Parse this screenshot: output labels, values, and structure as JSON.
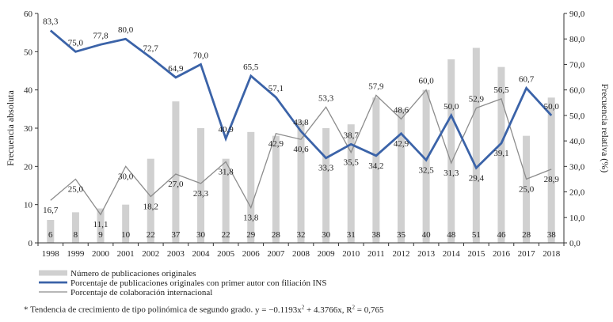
{
  "chart_data": {
    "type": "bar+line",
    "x": [
      "1998",
      "1999",
      "2000",
      "2001",
      "2002",
      "2003",
      "2004",
      "2005",
      "2006",
      "2007",
      "2008",
      "2009",
      "2010",
      "2011",
      "2012",
      "2013",
      "2014",
      "2015",
      "2016",
      "2017",
      "2018"
    ],
    "ylabel_left": "Frecuencia absoluta",
    "ylabel_right": "Frecuencia relativa (%)",
    "ylim_left": [
      0,
      60
    ],
    "ylim_right": [
      0,
      90
    ],
    "yticks_left": [
      "0",
      "10",
      "20",
      "30",
      "40",
      "50",
      "60"
    ],
    "yticks_right": [
      "0,0",
      "10,0",
      "20,0",
      "30,0",
      "40,0",
      "50,0",
      "60,0",
      "70,0",
      "80,0",
      "90,0"
    ],
    "grid": false,
    "legend_placement": "bottom-left",
    "series": [
      {
        "name": "Número de publicaciones originales",
        "kind": "bar",
        "axis": "left",
        "color": "#d0d0d0",
        "values": [
          6,
          8,
          9,
          10,
          22,
          37,
          30,
          22,
          29,
          28,
          32,
          30,
          31,
          38,
          35,
          40,
          48,
          51,
          46,
          28,
          38
        ],
        "labels": [
          "6",
          "8",
          "9",
          "10",
          "22",
          "37",
          "30",
          "22",
          "29",
          "28",
          "32",
          "30",
          "31",
          "38",
          "35",
          "40",
          "48",
          "51",
          "46",
          "28",
          "38"
        ]
      },
      {
        "name": "Porcentaje de publicaciones originales con primer autor con filiación INS",
        "kind": "line",
        "axis": "right",
        "color": "#3b63a8",
        "values": [
          83.3,
          75.0,
          77.8,
          80.0,
          72.7,
          64.9,
          70.0,
          40.9,
          65.5,
          57.1,
          43.8,
          33.3,
          38.7,
          34.2,
          42.9,
          32.5,
          50.0,
          29.4,
          39.1,
          60.7,
          50.0
        ],
        "labels": [
          "83,3",
          "75,0",
          "77,8",
          "80,0",
          "72,7",
          "64,9",
          "70,0",
          "40,9",
          "65,5",
          "57,1",
          "43,8",
          "33,3",
          "38,7",
          "34,2",
          "42,9",
          "32,5",
          "50,0",
          "29,4",
          "39,1",
          "60,7",
          "50,0"
        ]
      },
      {
        "name": "Porcentaje de colaboración internacional",
        "kind": "line",
        "axis": "right",
        "color": "#8c8c8c",
        "values": [
          16.7,
          25.0,
          11.1,
          30.0,
          18.2,
          27.0,
          23.3,
          31.8,
          13.8,
          42.9,
          40.6,
          53.3,
          35.5,
          57.9,
          48.6,
          60.0,
          31.3,
          52.9,
          56.5,
          25.0,
          28.9
        ],
        "labels": [
          "16,7",
          "25,0",
          "11,1",
          "30,0",
          "18,2",
          "27,0",
          "23,3",
          "31,8",
          "13,8",
          "42,9",
          "40,6",
          "53,3",
          "35,5",
          "57,9",
          "48,6",
          "60,0",
          "31,3",
          "52,9",
          "56,5",
          "25,0",
          "28,9"
        ]
      }
    ],
    "footnote": "Tendencia de crecimiento de tipo polinómica de segundo grado."
  },
  "footnote": {
    "marker": "*",
    "text": "Tendencia de crecimiento de tipo polinómica de segundo grado.",
    "equation_prefix": "y = −0.1193x",
    "equation_power": "2",
    "equation_suffix": " + 4.3766x, R",
    "r_power": "2",
    "r_value": " = 0,765"
  }
}
